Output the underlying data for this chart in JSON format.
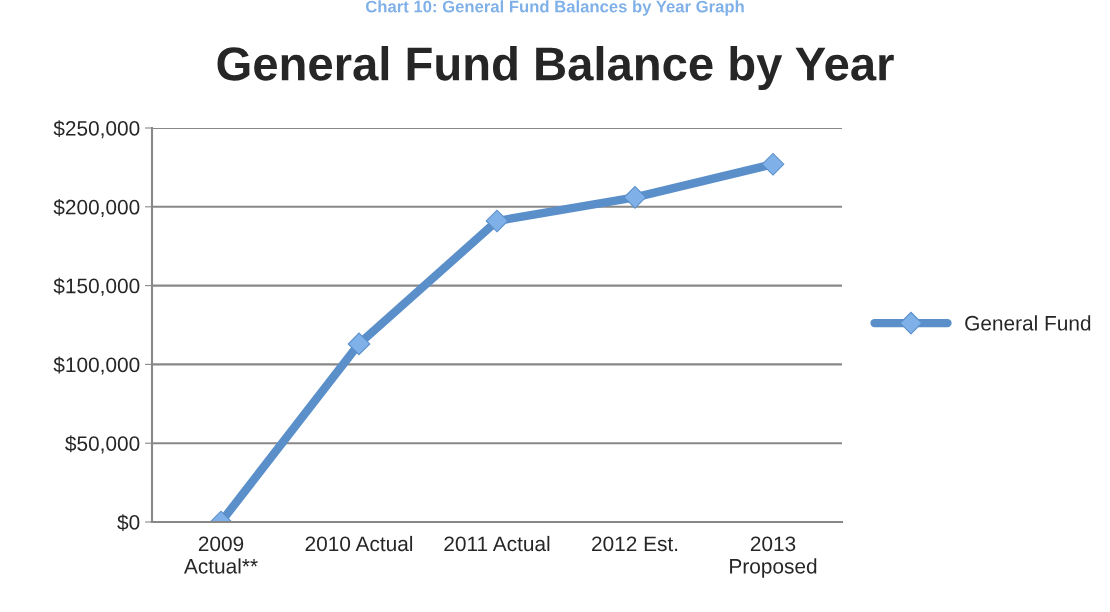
{
  "chart_data": {
    "type": "line",
    "title": "General Fund Balance by Year",
    "annotations": [
      "Chart 10: General Fund Balances by Year Graph"
    ],
    "categories": [
      "2009\nActual**",
      "2010 Actual",
      "2011 Actual",
      "2012 Est.",
      "2013\nProposed"
    ],
    "series": [
      {
        "name": "General Fund",
        "color": "#5a8fca",
        "values": [
          0,
          113000,
          191000,
          206000,
          227000
        ]
      }
    ],
    "ylim": [
      0,
      250000
    ],
    "yticks": [
      {
        "value": 0,
        "label": "$0"
      },
      {
        "value": 50000,
        "label": "$50,000"
      },
      {
        "value": 100000,
        "label": "$100,000"
      },
      {
        "value": 150000,
        "label": "$150,000"
      },
      {
        "value": 200000,
        "label": "$200,000"
      },
      {
        "value": 250000,
        "label": "$250,000"
      }
    ],
    "grid": "y",
    "legend": "right",
    "marker": "diamond",
    "line_style": "solid"
  }
}
